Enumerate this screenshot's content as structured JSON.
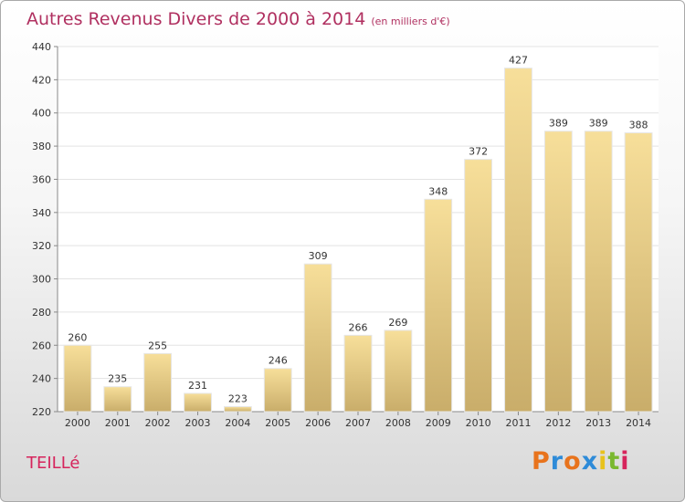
{
  "header": {
    "title": "Autres Revenus Divers de 2000 à 2014",
    "subtitle": "(en milliers d'€)"
  },
  "commune": "TEILLé",
  "logo": {
    "letters": [
      "P",
      "r",
      "o",
      "x",
      "i",
      "t",
      "i"
    ],
    "colors": [
      "#e8731c",
      "#2e8bd8",
      "#e8731c",
      "#2e8bd8",
      "#e8c21c",
      "#7ab82f",
      "#d6245c"
    ]
  },
  "colors": {
    "bar_light": "#f7df9a",
    "bar_dark": "#c9ad6a",
    "title": "#b03060",
    "gridline": "#e3e3e3"
  },
  "chart_data": {
    "type": "bar",
    "title": "Autres Revenus Divers de 2000 à 2014",
    "subtitle": "(en milliers d'€)",
    "categories": [
      "2000",
      "2001",
      "2002",
      "2003",
      "2004",
      "2005",
      "2006",
      "2007",
      "2008",
      "2009",
      "2010",
      "2011",
      "2012",
      "2013",
      "2014"
    ],
    "values": [
      260,
      235,
      255,
      231,
      223,
      246,
      309,
      266,
      269,
      348,
      372,
      427,
      389,
      389,
      388
    ],
    "ylim": [
      220,
      440
    ],
    "yticks": [
      220,
      240,
      260,
      280,
      300,
      320,
      340,
      360,
      380,
      400,
      420,
      440
    ],
    "grid": true,
    "xlabel": "",
    "ylabel": ""
  }
}
